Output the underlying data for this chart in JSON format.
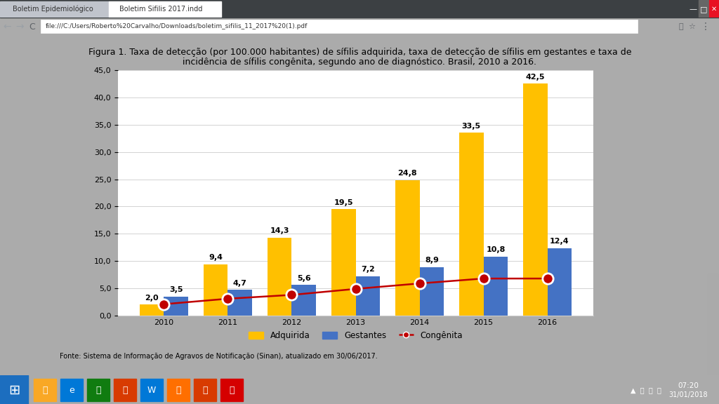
{
  "years": [
    "2010",
    "2011",
    "2012",
    "2013",
    "2014",
    "2015",
    "2016"
  ],
  "adquirida": [
    2.0,
    9.4,
    14.3,
    19.5,
    24.8,
    33.5,
    42.5
  ],
  "gestantes": [
    3.5,
    4.7,
    5.6,
    7.2,
    8.9,
    10.8,
    12.4
  ],
  "congenita": [
    2.1,
    3.1,
    3.8,
    4.9,
    5.9,
    6.8,
    6.8
  ],
  "adquirida_color": "#FFC000",
  "gestantes_color": "#4472C4",
  "congenita_color": "#C00000",
  "white": "#FFFFFF",
  "chrome_tab_bg": "#DEE1E6",
  "chrome_active_tab": "#FFFFFF",
  "chrome_bar_bg": "#F1F3F4",
  "chrome_top_bg": "#4285F4",
  "taskbar_color": "#1C6EBF",
  "page_bg": "#FFFFFF",
  "title_line1": "Figura 1. Taxa de detecção (por 100.000 habitantes) de sífilis adquirida, taxa de detecção de sífilis em gestantes e taxa de",
  "title_line2": "incidência de sífilis congênita, segundo ano de diagnóstico. Brasil, 2010 a 2016.",
  "legend_adquirida": "Adquirida",
  "legend_gestantes": "Gestantes",
  "legend_congenita": "Congênita",
  "footnote": "Fonte: Sistema de Informação de Agravos de Notificação (Sinan), atualizado em 30/06/2017.",
  "url_text": "file:///C:/Users/Roberto%20Carvalho/Downloads/boletim_sifilis_11_2017%20(1).pdf",
  "tab1_text": "Boletim Epidemiológico",
  "tab2_text": "Boletim Sifilis 2017.indd",
  "time_text": "07:20",
  "date_text": "31/01/2018",
  "ylim": [
    0,
    45
  ],
  "yticks": [
    0.0,
    5.0,
    10.0,
    15.0,
    20.0,
    25.0,
    30.0,
    35.0,
    40.0,
    45.0
  ],
  "bar_width": 0.38,
  "title_fontsize": 9,
  "tick_fontsize": 8,
  "label_fontsize": 8,
  "legend_fontsize": 8.5
}
